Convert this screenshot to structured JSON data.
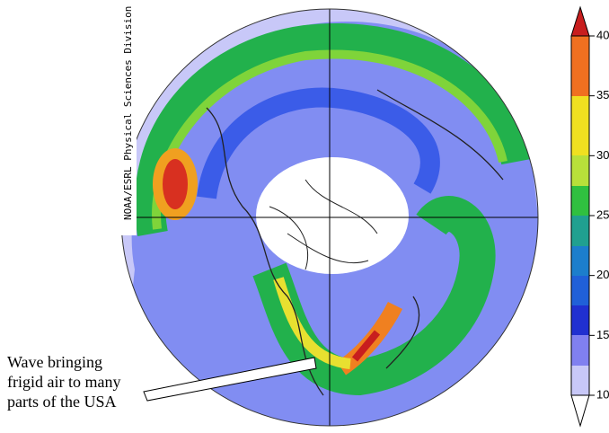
{
  "credit": "NOAA/ESRL Physical Sciences Division",
  "annotation": {
    "lines": [
      "Wave bringing",
      "frigid air to many",
      "parts of the USA"
    ]
  },
  "colorbar": {
    "lim": [
      10,
      40
    ],
    "ticks": [
      10,
      15,
      20,
      25,
      30,
      35,
      40
    ]
  }
}
